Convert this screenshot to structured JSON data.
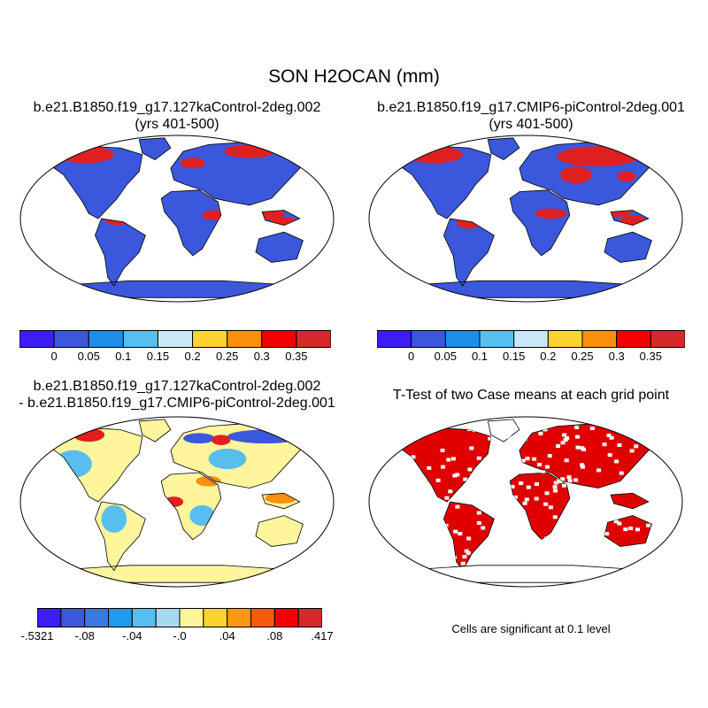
{
  "main_title": "SON H2OCAN (mm)",
  "panels": {
    "top_left": {
      "title_line1": "b.e21.B1850.f19_g17.127kaControl-2deg.002",
      "title_line2": "(yrs 401-500)"
    },
    "top_right": {
      "title_line1": "b.e21.B1850.f19_g17.CMIP6-piControl-2deg.001",
      "title_line2": "(yrs 401-500)"
    },
    "bottom_left": {
      "title_line1": "b.e21.B1850.f19_g17.127kaControl-2deg.002",
      "title_line2": "- b.e21.B1850.f19_g17.CMIP6-piControl-2deg.001"
    },
    "bottom_right": {
      "title_line1": "T-Test of two Case means at each grid point",
      "note": "Cells are significant at 0.1 level"
    }
  },
  "colorbar_abs": {
    "colors": [
      "#3d1df5",
      "#3b58dc",
      "#1e8ee8",
      "#58bef0",
      "#c9e8f5",
      "#fdd331",
      "#fb8f0e",
      "#f40000",
      "#d62a2a"
    ],
    "labels": [
      "0",
      "0.05",
      "0.1",
      "0.15",
      "0.2",
      "0.25",
      "0.3",
      "0.35"
    ]
  },
  "colorbar_diff": {
    "colors": [
      "#3d1df5",
      "#3b58dc",
      "#3c78e3",
      "#1e9aee",
      "#58bef0",
      "#a6d9f2",
      "#fff59c",
      "#fdd331",
      "#fb9a10",
      "#f75a08",
      "#f40000",
      "#d62a2a"
    ],
    "labels": [
      "-.5321",
      "-.08",
      "-.04",
      "-.0",
      ".04",
      ".08",
      ".417"
    ]
  },
  "map_colors": {
    "outline": "#000000",
    "abs_base": "#3b58dc",
    "abs_high": "#e02020",
    "diff_base": "#fff59c",
    "diff_neg": "#58bef0",
    "diff_neg_strong": "#3b58dc",
    "diff_pos": "#fb8f0e",
    "diff_pos_strong": "#e02020",
    "ttest": "#e00000"
  }
}
